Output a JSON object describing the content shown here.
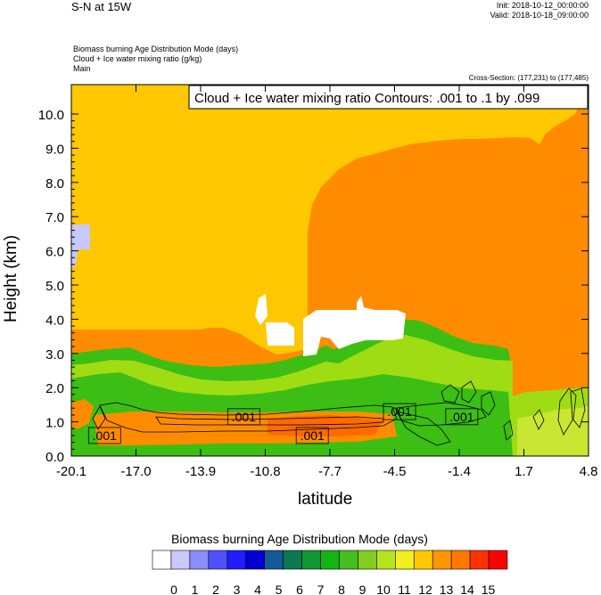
{
  "header": {
    "title": "S-N at 15W",
    "init": "Init: 2018-10-12_00:00:00",
    "valid": "Valid: 2018-10-18_09:00:00",
    "var_line_1": "Biomass burning Age Distribution Mode   (days)",
    "var_line_2": "Cloud + Ice water mixing ratio   (g/kg)",
    "var_line_3": "Main",
    "cross_section": "Cross-Section: (177,231) to (177,485)"
  },
  "chart_data": {
    "type": "heatmap",
    "contour_info": "Cloud + Ice water mixing ratio Contours: .001 to .1 by .099",
    "xlabel": "latitude",
    "ylabel": "Height (km)",
    "x_ticks": [
      "-20.1",
      "-17.0",
      "-13.9",
      "-10.8",
      "-7.7",
      "-4.5",
      "-1.4",
      "1.7",
      "4.8"
    ],
    "y_ticks": [
      "0.0",
      "1.0",
      "2.0",
      "3.0",
      "4.0",
      "5.0",
      "6.0",
      "7.0",
      "8.0",
      "9.0",
      "10.0"
    ],
    "xlim": [
      -20.1,
      4.8
    ],
    "ylim": [
      0,
      10.8
    ],
    "colorbar": {
      "title": "Biomass burning Age Distribution Mode  (days)",
      "labels": [
        "0",
        "1",
        "2",
        "3",
        "4",
        "5",
        "6",
        "7",
        "8",
        "9",
        "10",
        "11",
        "12",
        "13",
        "14",
        "15"
      ],
      "colors": [
        "#ffffff",
        "#c8c8ff",
        "#8c8cff",
        "#5050ff",
        "#1e1eff",
        "#0000d2",
        "#145a96",
        "#0a7850",
        "#109632",
        "#14b414",
        "#46be1e",
        "#82cd1e",
        "#b4e61e",
        "#f0f01e",
        "#ffc800",
        "#ff9600",
        "#ff7800",
        "#ff3200",
        "#ff0000"
      ]
    },
    "fill_regions": [
      {
        "level": "13",
        "color": "#ffc800",
        "days": 13
      },
      {
        "level": "14",
        "color": "#ff8c00",
        "days": 14
      },
      {
        "level": "10",
        "color": "#3cbe14",
        "days": 10
      },
      {
        "level": "11",
        "color": "#a0dc14",
        "days": 11
      },
      {
        "level": "12",
        "color": "#c8e632",
        "days": 12
      },
      {
        "level": "2",
        "color": "#c8c8ff",
        "days": 2
      },
      {
        "level": "9",
        "color": "#14aa14",
        "days": 9
      },
      {
        "level": "15",
        "color": "#ff6a00",
        "days": 15
      }
    ],
    "contour_labels": [
      {
        "text": ".001",
        "lat": -18.5,
        "h": 0.6
      },
      {
        "text": ".001",
        "lat": -11.8,
        "h": 1.15
      },
      {
        "text": ".001",
        "lat": -8.5,
        "h": 0.6
      },
      {
        "text": ".001",
        "lat": -4.3,
        "h": 1.3
      },
      {
        "text": ".001",
        "lat": -1.3,
        "h": 1.15
      }
    ]
  }
}
